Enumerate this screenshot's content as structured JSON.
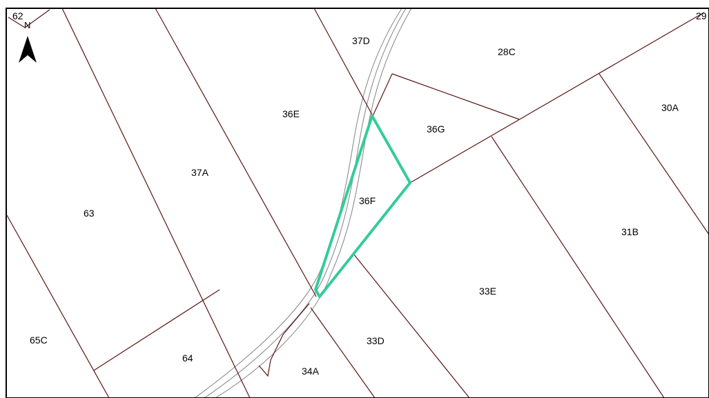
{
  "map": {
    "north_label": "N",
    "parcels": {
      "p62": "62",
      "p29": "29",
      "p37D": "37D",
      "p28C": "28C",
      "p36E": "36E",
      "p36G": "36G",
      "p30A": "30A",
      "p37A": "37A",
      "p36F": "36F",
      "p63": "63",
      "p31B": "31B",
      "p33E": "33E",
      "p65C": "65C",
      "p64": "64",
      "p33D": "33D",
      "p34A": "34A"
    },
    "highlighted_parcel": "36F",
    "colors": {
      "parcel_boundary": "#5a1414",
      "road": "#8c8c8c",
      "highlight": "#33cc99"
    }
  }
}
